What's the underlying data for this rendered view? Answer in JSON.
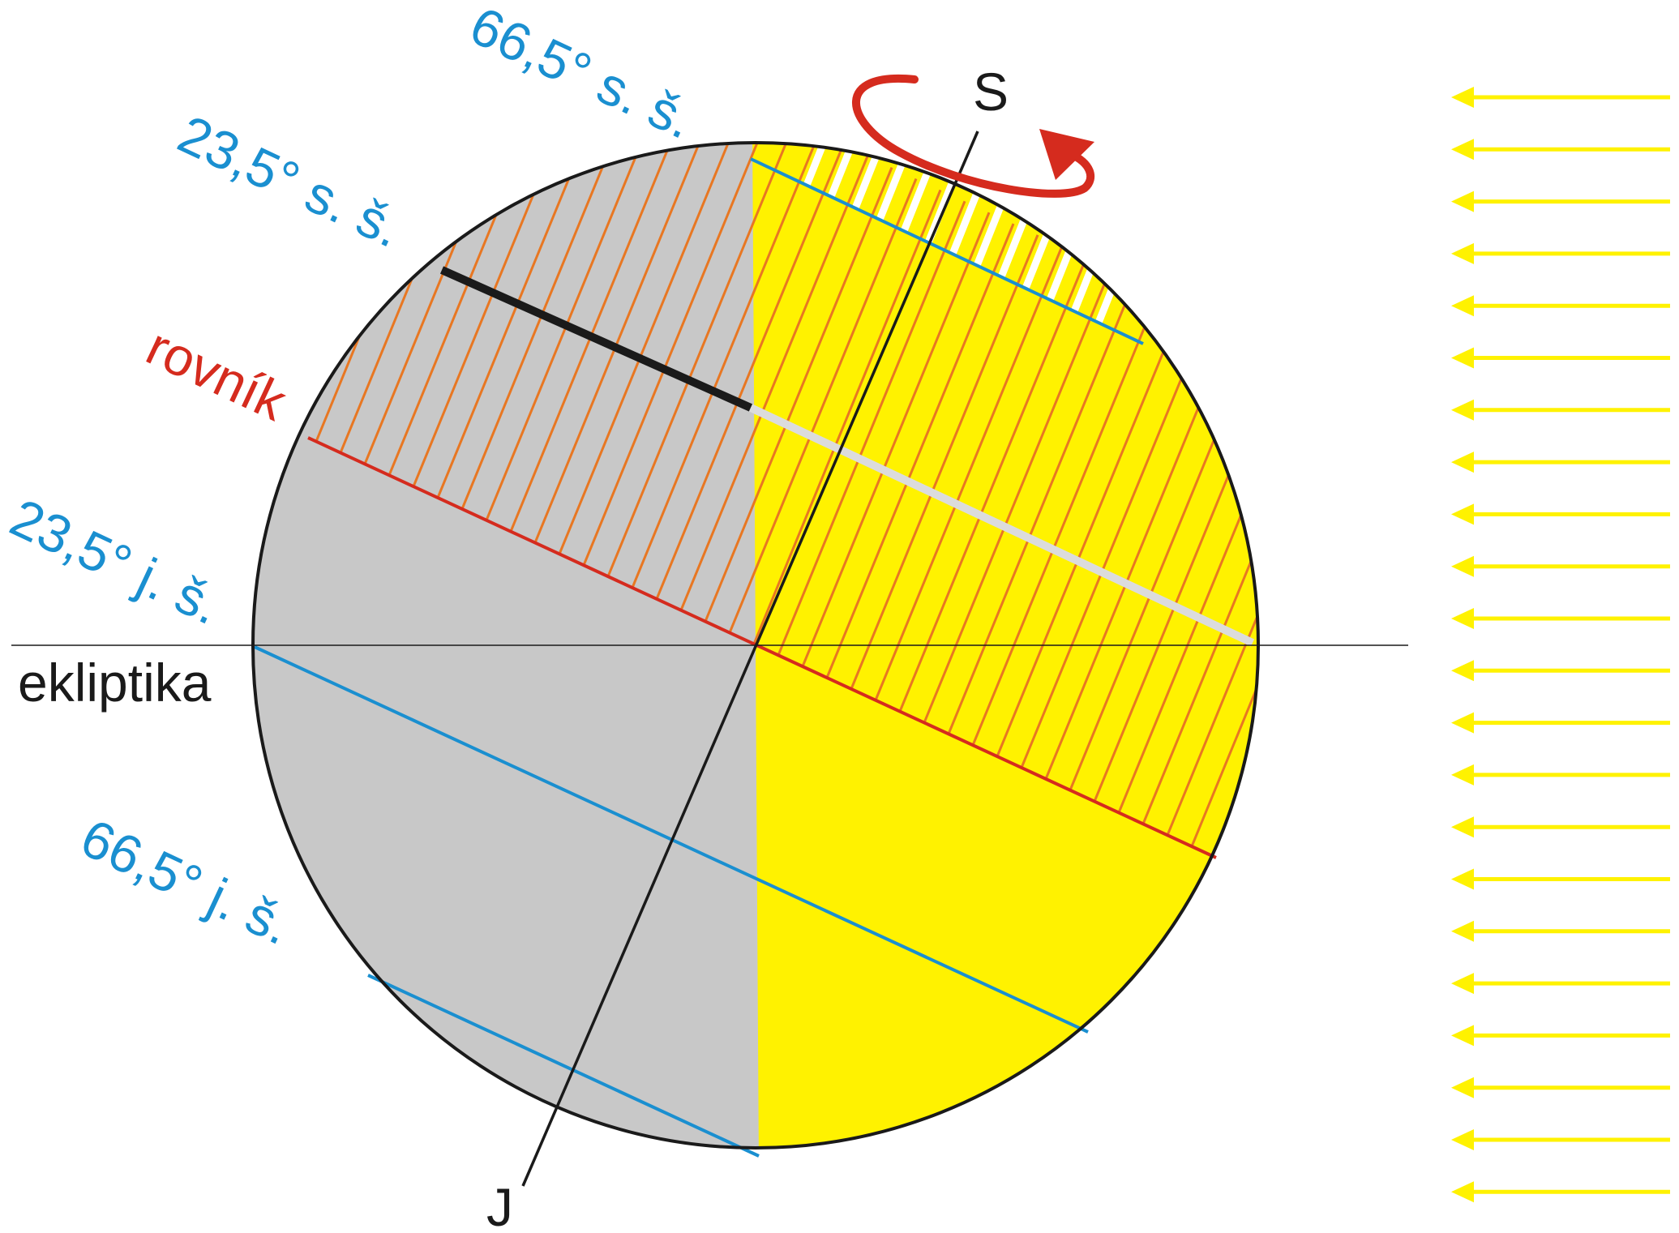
{
  "colors": {
    "day": "#FFF200",
    "night": "#C8C8C8",
    "equator": "#D52B1E",
    "circles": "#1A8FD0",
    "hatch": "#E87722",
    "axis": "#1A1A1A",
    "rotation": "#D52B1E",
    "rays": "#FFF200",
    "text_dark": "#1A1A1A"
  },
  "labels": {
    "arctic": "66,5° s. š.",
    "tropic_north": "23,5° s. š.",
    "equator": "rovník",
    "tropic_south": "23,5° j. š.",
    "ecliptic": "ekliptika",
    "antarctic": "66,5° j. š.",
    "north_pole": "S",
    "south_pole": "J"
  },
  "sun_rays": {
    "count": 22,
    "direction": "left"
  }
}
